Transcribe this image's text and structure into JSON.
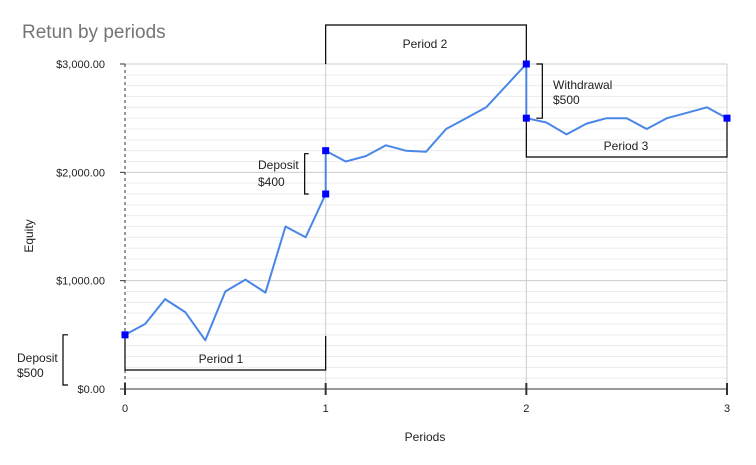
{
  "chart_data": {
    "type": "line",
    "title": "Retun by periods",
    "xlabel": "Periods",
    "ylabel": "Equity",
    "xlim": [
      0,
      3
    ],
    "ylim": [
      0,
      3000
    ],
    "x_ticks": [
      "0",
      "1",
      "2",
      "3"
    ],
    "y_ticks": [
      "$0.00",
      "$1,000.00",
      "$2,000.00",
      "$3,000.00"
    ],
    "grid": true,
    "legend": "none",
    "colors": {
      "line": "#4a86e8",
      "marker": "#0000ff",
      "annotation": "#000000",
      "title": "#757575"
    },
    "series": [
      {
        "points": [
          [
            0,
            500
          ],
          [
            0.1,
            600
          ],
          [
            0.2,
            830
          ],
          [
            0.3,
            710
          ],
          [
            0.4,
            450
          ],
          [
            0.5,
            900
          ],
          [
            0.6,
            1010
          ],
          [
            0.7,
            890
          ],
          [
            0.8,
            1500
          ],
          [
            0.9,
            1400
          ],
          [
            1.0,
            1800
          ],
          [
            1.0,
            2200
          ],
          [
            1.1,
            2100
          ],
          [
            1.2,
            2150
          ],
          [
            1.3,
            2250
          ],
          [
            1.4,
            2200
          ],
          [
            1.5,
            2190
          ],
          [
            1.6,
            2400
          ],
          [
            1.7,
            2500
          ],
          [
            1.8,
            2600
          ],
          [
            2.0,
            3000
          ],
          [
            2.0,
            2500
          ],
          [
            2.1,
            2460
          ],
          [
            2.2,
            2350
          ],
          [
            2.3,
            2450
          ],
          [
            2.4,
            2500
          ],
          [
            2.5,
            2500
          ],
          [
            2.6,
            2400
          ],
          [
            2.7,
            2500
          ],
          [
            2.8,
            2550
          ],
          [
            2.9,
            2600
          ],
          [
            3.0,
            2500
          ]
        ],
        "markers": [
          [
            0,
            500
          ],
          [
            1,
            1800
          ],
          [
            1,
            2200
          ],
          [
            2,
            3000
          ],
          [
            2,
            2500
          ],
          [
            3,
            2500
          ]
        ]
      }
    ],
    "annotations": {
      "deposit_1": {
        "line1": "Deposit",
        "line2": "$500"
      },
      "deposit_2": {
        "line1": "Deposit",
        "line2": "$400"
      },
      "withdrawal": {
        "line1": "Withdrawal",
        "line2": "$500"
      },
      "period_1": "Period 1",
      "period_2": "Period 2",
      "period_3": "Period 3"
    }
  }
}
